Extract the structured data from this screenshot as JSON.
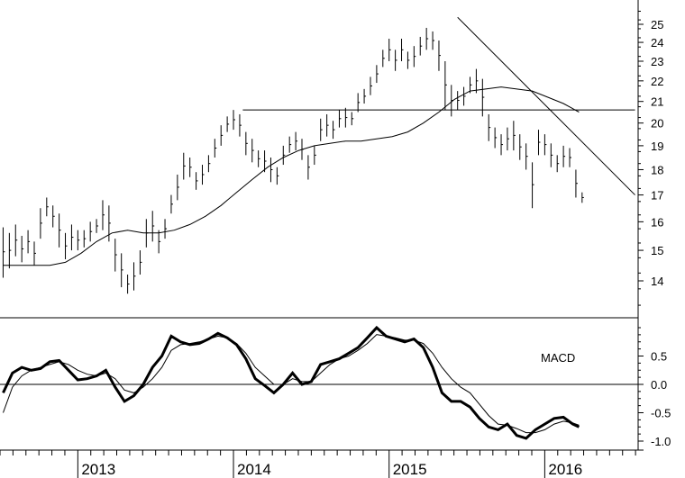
{
  "chart_data": [
    {
      "type": "line",
      "title": "",
      "xlabel": "",
      "ylabel": "",
      "ylim": [
        13.0,
        26.0
      ],
      "y_scale": "log",
      "y_ticks": [
        {
          "value": 14,
          "label": "14"
        },
        {
          "value": 15,
          "label": "15"
        },
        {
          "value": 16,
          "label": "16"
        },
        {
          "value": 17,
          "label": "17"
        },
        {
          "value": 18,
          "label": "18"
        },
        {
          "value": 19,
          "label": "19"
        },
        {
          "value": 20,
          "label": "20"
        },
        {
          "value": 21,
          "label": "21"
        },
        {
          "value": 22,
          "label": "22"
        },
        {
          "value": 23,
          "label": "23"
        },
        {
          "value": 24,
          "label": "24"
        },
        {
          "value": 25,
          "label": "25"
        }
      ],
      "x_labels": [
        "2013",
        "2014",
        "2015",
        "2016"
      ],
      "x_range": [
        2012.5,
        2016.6
      ],
      "price_bars_weekly": {
        "x": [
          2012.52,
          2012.56,
          2012.6,
          2012.64,
          2012.68,
          2012.72,
          2012.76,
          2012.8,
          2012.84,
          2012.88,
          2012.92,
          2012.96,
          2013.0,
          2013.04,
          2013.08,
          2013.12,
          2013.16,
          2013.2,
          2013.24,
          2013.28,
          2013.32,
          2013.36,
          2013.4,
          2013.44,
          2013.48,
          2013.52,
          2013.56,
          2013.6,
          2013.64,
          2013.68,
          2013.72,
          2013.76,
          2013.8,
          2013.84,
          2013.88,
          2013.92,
          2013.96,
          2014.0,
          2014.04,
          2014.08,
          2014.12,
          2014.16,
          2014.2,
          2014.24,
          2014.28,
          2014.32,
          2014.36,
          2014.4,
          2014.44,
          2014.48,
          2014.52,
          2014.56,
          2014.6,
          2014.64,
          2014.68,
          2014.72,
          2014.76,
          2014.8,
          2014.84,
          2014.88,
          2014.92,
          2014.96,
          2015.0,
          2015.04,
          2015.08,
          2015.12,
          2015.16,
          2015.2,
          2015.24,
          2015.28,
          2015.32,
          2015.36,
          2015.4,
          2015.44,
          2015.48,
          2015.52,
          2015.56,
          2015.6,
          2015.64,
          2015.68,
          2015.72,
          2015.76,
          2015.8,
          2015.84,
          2015.88,
          2015.92,
          2015.96,
          2016.0,
          2016.04,
          2016.08,
          2016.12,
          2016.16,
          2016.2,
          2016.24
        ],
        "high": [
          15.8,
          15.6,
          15.9,
          15.5,
          15.7,
          15.3,
          16.5,
          16.9,
          16.6,
          16.3,
          15.6,
          15.9,
          15.7,
          15.7,
          16.0,
          16.1,
          16.8,
          16.6,
          15.4,
          14.9,
          14.2,
          14.6,
          15.0,
          16.1,
          16.4,
          15.7,
          16.1,
          17.0,
          17.8,
          18.7,
          18.5,
          17.9,
          18.2,
          18.6,
          19.3,
          19.9,
          20.3,
          20.6,
          20.4,
          19.6,
          19.3,
          18.8,
          18.8,
          18.5,
          18.1,
          19.0,
          19.4,
          19.6,
          19.3,
          18.6,
          19.0,
          20.2,
          20.4,
          20.1,
          20.6,
          20.7,
          20.5,
          21.4,
          21.6,
          22.2,
          22.8,
          23.6,
          24.2,
          23.6,
          24.2,
          23.5,
          23.8,
          24.3,
          24.8,
          24.6,
          24.1,
          23.0,
          21.8,
          21.5,
          21.7,
          22.2,
          22.6,
          22.1,
          20.4,
          19.8,
          19.5,
          19.8,
          20.1,
          19.5,
          19.1,
          18.3,
          19.7,
          19.5,
          19.1,
          18.6,
          19.0,
          18.9,
          18.0,
          17.1
        ],
        "low": [
          14.1,
          14.4,
          14.8,
          14.6,
          14.9,
          14.5,
          15.4,
          16.2,
          15.8,
          15.1,
          14.7,
          15.0,
          15.0,
          15.1,
          15.3,
          15.6,
          15.7,
          15.3,
          14.3,
          13.8,
          13.6,
          13.7,
          14.2,
          15.1,
          15.3,
          14.9,
          15.4,
          16.3,
          16.8,
          17.6,
          17.7,
          17.2,
          17.4,
          17.9,
          18.5,
          19.0,
          19.6,
          19.7,
          19.4,
          18.6,
          18.3,
          18.1,
          17.9,
          17.5,
          17.4,
          18.2,
          18.7,
          18.8,
          18.4,
          17.6,
          18.2,
          19.2,
          19.4,
          19.3,
          19.8,
          19.8,
          19.9,
          20.5,
          20.9,
          21.3,
          21.9,
          22.7,
          23.0,
          22.5,
          23.0,
          22.6,
          22.7,
          23.3,
          23.6,
          23.6,
          22.5,
          20.6,
          20.3,
          20.6,
          20.8,
          21.4,
          21.4,
          20.3,
          19.2,
          18.9,
          18.6,
          18.8,
          18.8,
          18.4,
          18.0,
          16.5,
          18.6,
          18.6,
          18.1,
          17.9,
          18.1,
          18.1,
          16.9,
          16.7
        ]
      },
      "moving_average": {
        "x": [
          2012.52,
          2012.62,
          2012.72,
          2012.82,
          2012.92,
          2013.02,
          2013.12,
          2013.22,
          2013.32,
          2013.42,
          2013.52,
          2013.62,
          2013.72,
          2013.82,
          2013.92,
          2014.02,
          2014.12,
          2014.22,
          2014.32,
          2014.42,
          2014.52,
          2014.62,
          2014.72,
          2014.82,
          2014.92,
          2015.02,
          2015.12,
          2015.22,
          2015.32,
          2015.42,
          2015.52,
          2015.62,
          2015.72,
          2015.82,
          2015.92,
          2016.02,
          2016.12,
          2016.22
        ],
        "y": [
          14.5,
          14.5,
          14.5,
          14.5,
          14.6,
          14.9,
          15.3,
          15.6,
          15.7,
          15.6,
          15.6,
          15.7,
          15.9,
          16.2,
          16.6,
          17.1,
          17.6,
          18.1,
          18.5,
          18.8,
          19.0,
          19.1,
          19.2,
          19.2,
          19.3,
          19.4,
          19.6,
          20.0,
          20.5,
          21.1,
          21.5,
          21.6,
          21.7,
          21.6,
          21.5,
          21.2,
          20.9,
          20.5
        ]
      },
      "trend_lines": [
        {
          "label": "",
          "x": [
            2014.06,
            2016.58
          ],
          "y": [
            20.6,
            20.6
          ]
        },
        {
          "label": "",
          "x": [
            2015.44,
            2016.58
          ],
          "y": [
            25.4,
            17.0
          ]
        }
      ]
    },
    {
      "type": "line",
      "title": "",
      "ylim": [
        -1.05,
        1.15
      ],
      "y_ticks": [
        {
          "value": 0.5,
          "label": "0.5"
        },
        {
          "value": 0.0,
          "label": "0.0"
        },
        {
          "value": -0.5,
          "label": "-0.5"
        },
        {
          "value": -1.0,
          "label": "-1.0"
        }
      ],
      "annotation": "MACD",
      "zero_line": true,
      "series": [
        {
          "name": "",
          "style": "thick",
          "x": [
            2012.52,
            2012.58,
            2012.64,
            2012.7,
            2012.76,
            2012.82,
            2012.88,
            2012.94,
            2013.0,
            2013.06,
            2013.12,
            2013.18,
            2013.24,
            2013.3,
            2013.36,
            2013.42,
            2013.48,
            2013.54,
            2013.6,
            2013.66,
            2013.72,
            2013.78,
            2013.84,
            2013.9,
            2013.96,
            2014.02,
            2014.08,
            2014.14,
            2014.2,
            2014.26,
            2014.32,
            2014.38,
            2014.44,
            2014.5,
            2014.56,
            2014.62,
            2014.68,
            2014.74,
            2014.8,
            2014.86,
            2014.92,
            2014.98,
            2015.04,
            2015.1,
            2015.16,
            2015.22,
            2015.28,
            2015.34,
            2015.4,
            2015.46,
            2015.52,
            2015.58,
            2015.64,
            2015.7,
            2015.76,
            2015.82,
            2015.88,
            2015.94,
            2016.0,
            2016.06,
            2016.12,
            2016.18,
            2016.22
          ],
          "y": [
            -0.15,
            0.2,
            0.3,
            0.25,
            0.28,
            0.4,
            0.42,
            0.25,
            0.08,
            0.1,
            0.15,
            0.25,
            -0.05,
            -0.3,
            -0.2,
            0.0,
            0.3,
            0.5,
            0.85,
            0.75,
            0.7,
            0.72,
            0.8,
            0.9,
            0.82,
            0.7,
            0.45,
            0.1,
            -0.02,
            -0.15,
            0.0,
            0.2,
            0.0,
            0.05,
            0.35,
            0.4,
            0.45,
            0.55,
            0.65,
            0.82,
            1.0,
            0.85,
            0.8,
            0.75,
            0.8,
            0.65,
            0.3,
            -0.15,
            -0.3,
            -0.3,
            -0.4,
            -0.6,
            -0.75,
            -0.8,
            -0.7,
            -0.9,
            -0.95,
            -0.8,
            -0.7,
            -0.6,
            -0.58,
            -0.7,
            -0.75
          ]
        },
        {
          "name": "",
          "style": "thin",
          "x": [
            2012.52,
            2012.58,
            2012.64,
            2012.7,
            2012.76,
            2012.82,
            2012.88,
            2012.94,
            2013.0,
            2013.06,
            2013.12,
            2013.18,
            2013.24,
            2013.3,
            2013.36,
            2013.42,
            2013.48,
            2013.54,
            2013.6,
            2013.66,
            2013.72,
            2013.78,
            2013.84,
            2013.9,
            2013.96,
            2014.02,
            2014.08,
            2014.14,
            2014.2,
            2014.26,
            2014.32,
            2014.38,
            2014.44,
            2014.5,
            2014.56,
            2014.62,
            2014.68,
            2014.74,
            2014.8,
            2014.86,
            2014.92,
            2014.98,
            2015.04,
            2015.1,
            2015.16,
            2015.22,
            2015.28,
            2015.34,
            2015.4,
            2015.46,
            2015.52,
            2015.58,
            2015.64,
            2015.7,
            2015.76,
            2015.82,
            2015.88,
            2015.94,
            2016.0,
            2016.06,
            2016.12,
            2016.18,
            2016.22
          ],
          "y": [
            -0.5,
            -0.05,
            0.15,
            0.25,
            0.3,
            0.35,
            0.4,
            0.35,
            0.25,
            0.18,
            0.15,
            0.2,
            0.1,
            -0.1,
            -0.15,
            -0.05,
            0.1,
            0.3,
            0.6,
            0.7,
            0.72,
            0.75,
            0.8,
            0.85,
            0.82,
            0.72,
            0.55,
            0.3,
            0.15,
            0.0,
            0.0,
            0.1,
            0.05,
            0.05,
            0.2,
            0.35,
            0.45,
            0.5,
            0.6,
            0.72,
            0.88,
            0.85,
            0.82,
            0.78,
            0.78,
            0.72,
            0.55,
            0.3,
            0.1,
            -0.05,
            -0.15,
            -0.35,
            -0.55,
            -0.7,
            -0.72,
            -0.78,
            -0.85,
            -0.85,
            -0.8,
            -0.7,
            -0.65,
            -0.68,
            -0.72
          ]
        }
      ]
    }
  ]
}
